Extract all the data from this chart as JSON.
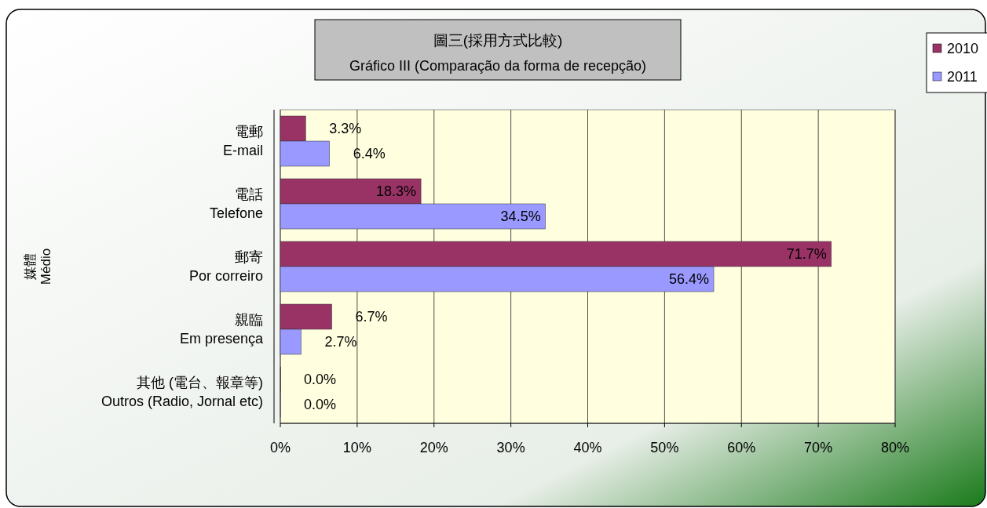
{
  "chart_data": {
    "type": "bar",
    "orientation": "horizontal",
    "title": "圖三(採用方式比較)",
    "subtitle": "Gráfico III (Comparação da forma de recepção)",
    "ylabel": "媒體\nMédio",
    "categories": [
      "電郵\nE-mail",
      "電話\nTelefone",
      "郵寄\nPor correiro",
      "親臨\nEm presença",
      "其他 (電台、報章等)\nOutros (Radio, Jornal etc)"
    ],
    "series": [
      {
        "name": "2010",
        "color": "#993366",
        "values": [
          3.3,
          18.3,
          71.7,
          6.7,
          0.0
        ],
        "value_labels": [
          "3.3%",
          "18.3%",
          "71.7%",
          "6.7%",
          "0.0%"
        ]
      },
      {
        "name": "2011",
        "color": "#9999ff",
        "values": [
          6.4,
          34.5,
          56.4,
          2.7,
          0.0
        ],
        "value_labels": [
          "6.4%",
          "34.5%",
          "56.4%",
          "2.7%",
          "0.0%"
        ]
      }
    ],
    "xlim": [
      0,
      80
    ],
    "xticks": [
      {
        "value": 0,
        "label": "0%"
      },
      {
        "value": 10,
        "label": "10%"
      },
      {
        "value": 20,
        "label": "20%"
      },
      {
        "value": 30,
        "label": "30%"
      },
      {
        "value": 40,
        "label": "40%"
      },
      {
        "value": 50,
        "label": "50%"
      },
      {
        "value": 60,
        "label": "60%"
      },
      {
        "value": 70,
        "label": "70%"
      },
      {
        "value": 80,
        "label": "80%"
      }
    ],
    "grid": "x",
    "legend": "top right"
  }
}
